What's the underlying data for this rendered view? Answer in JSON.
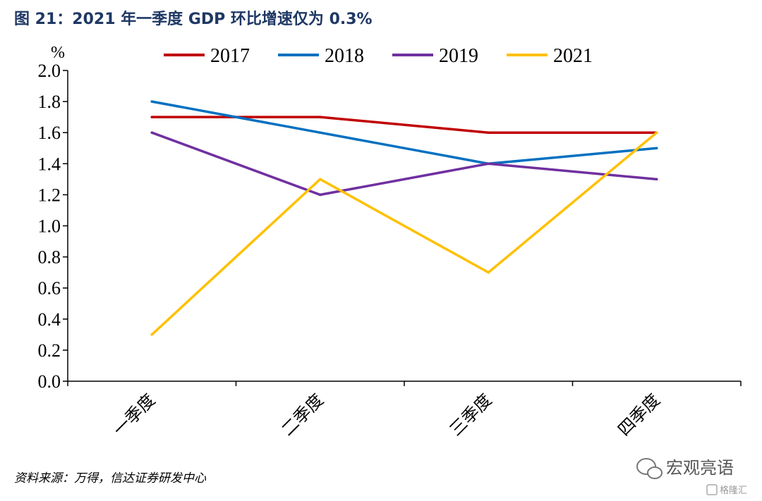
{
  "title": "图 21：2021 年一季度 GDP 环比增速仅为 0.3%",
  "source": "资料来源：万得，信达证券研发中心",
  "watermark": {
    "brand": "宏观亮语",
    "sub": "格隆汇"
  },
  "chart_data": {
    "type": "line",
    "unit": "%",
    "categories": [
      "一季度",
      "二季度",
      "三季度",
      "四季度"
    ],
    "ylim": [
      0.0,
      2.0
    ],
    "yticks": [
      "0.0",
      "0.2",
      "0.4",
      "0.6",
      "0.8",
      "1.0",
      "1.2",
      "1.4",
      "1.6",
      "1.8",
      "2.0"
    ],
    "legend_position": "top",
    "grid": false,
    "series": [
      {
        "name": "2017",
        "color": "#c00000",
        "values": [
          1.7,
          1.7,
          1.6,
          1.6
        ]
      },
      {
        "name": "2018",
        "color": "#0070c0",
        "values": [
          1.8,
          1.6,
          1.4,
          1.5
        ]
      },
      {
        "name": "2019",
        "color": "#7030a0",
        "values": [
          1.6,
          1.2,
          1.4,
          1.3
        ]
      },
      {
        "name": "2021",
        "color": "#ffc000",
        "values": [
          0.3,
          1.3,
          0.7,
          1.6
        ]
      }
    ]
  }
}
